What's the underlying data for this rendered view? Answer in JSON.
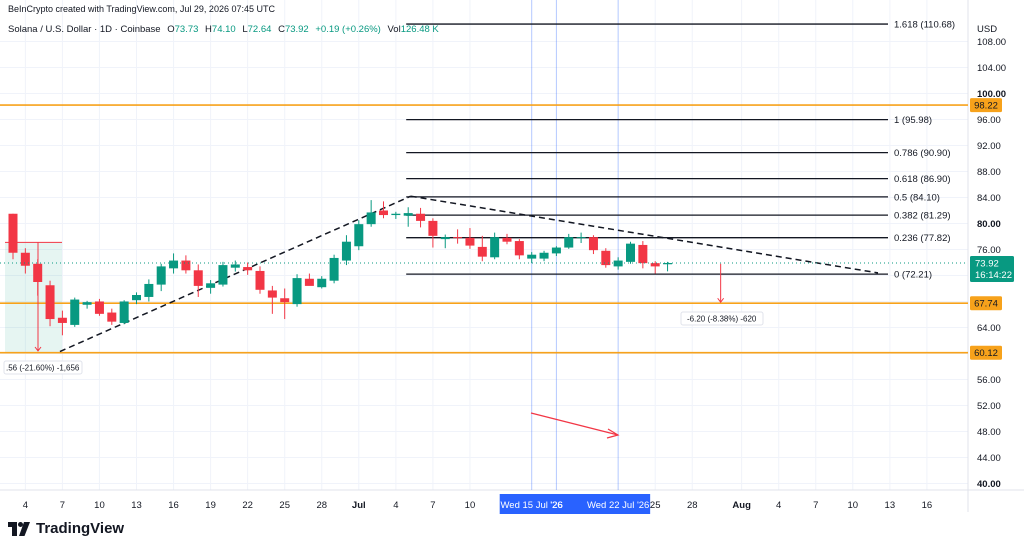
{
  "header": {
    "credit": "BeInCrypto created with TradingView.com, Jul 29, 2026 07:45 UTC"
  },
  "legend": {
    "symbol": "Solana / U.S. Dollar · 1D · Coinbase",
    "o_label": "O",
    "o_val": "73.73",
    "h_label": "H",
    "h_val": "74.10",
    "l_label": "L",
    "l_val": "72.64",
    "c_label": "C",
    "c_val": "73.92",
    "chg": "+0.19 (+0.26%)",
    "vol_label": "Vol",
    "vol_val": "126.48 K"
  },
  "currency": "USD",
  "logo_text": "TradingView",
  "colors": {
    "up": "#089981",
    "down": "#f23645",
    "support": "#f7a21b",
    "fib": "#131722",
    "selection": "#2962ff"
  },
  "chart_data": {
    "type": "candlestick",
    "price_axis": {
      "ticks": [
        "108.00",
        "104.00",
        "100.00",
        "96.00",
        "92.00",
        "88.00",
        "84.00",
        "80.00",
        "76.00",
        "72.00",
        "68.00",
        "64.00",
        "60.00",
        "56.00",
        "52.00",
        "48.00",
        "44.00",
        "40.00"
      ],
      "bold_ticks": [
        "100.00",
        "80.00",
        "40.00"
      ],
      "range": [
        39,
        111
      ]
    },
    "time_axis": {
      "labels": [
        {
          "text": "4",
          "i": 1
        },
        {
          "text": "7",
          "i": 4
        },
        {
          "text": "10",
          "i": 7
        },
        {
          "text": "13",
          "i": 10
        },
        {
          "text": "16",
          "i": 13
        },
        {
          "text": "19",
          "i": 16
        },
        {
          "text": "22",
          "i": 19
        },
        {
          "text": "25",
          "i": 22
        },
        {
          "text": "28",
          "i": 25
        },
        {
          "text": "Jul",
          "i": 28
        },
        {
          "text": "4",
          "i": 31
        },
        {
          "text": "7",
          "i": 34
        },
        {
          "text": "10",
          "i": 37
        },
        {
          "text": "25",
          "i": 52
        },
        {
          "text": "28",
          "i": 55
        },
        {
          "text": "Aug",
          "i": 59
        },
        {
          "text": "4",
          "i": 62
        },
        {
          "text": "7",
          "i": 65
        },
        {
          "text": "10",
          "i": 68
        },
        {
          "text": "13",
          "i": 71
        },
        {
          "text": "16",
          "i": 74
        }
      ],
      "highlights": [
        {
          "text": "Wed 15 Jul '26",
          "i": 42
        },
        {
          "text": "'26",
          "i": 44
        },
        {
          "text": "Wed 22 Jul '26",
          "i": 49
        }
      ]
    },
    "candles": [
      {
        "o": 81.5,
        "h": 81.5,
        "l": 74.5,
        "c": 75.5
      },
      {
        "o": 75.5,
        "h": 76.2,
        "l": 72.3,
        "c": 73.5
      },
      {
        "o": 73.8,
        "h": 74.5,
        "l": 68.9,
        "c": 71.0
      },
      {
        "o": 70.5,
        "h": 71.2,
        "l": 64.2,
        "c": 65.3
      },
      {
        "o": 65.5,
        "h": 66.6,
        "l": 62.8,
        "c": 64.7
      },
      {
        "o": 64.4,
        "h": 68.6,
        "l": 64.1,
        "c": 68.3
      },
      {
        "o": 67.5,
        "h": 68.1,
        "l": 66.9,
        "c": 67.9
      },
      {
        "o": 68.0,
        "h": 68.4,
        "l": 65.8,
        "c": 66.1
      },
      {
        "o": 66.3,
        "h": 66.9,
        "l": 64.4,
        "c": 64.9
      },
      {
        "o": 64.7,
        "h": 68.2,
        "l": 64.5,
        "c": 68.0
      },
      {
        "o": 68.2,
        "h": 69.4,
        "l": 67.6,
        "c": 69.0
      },
      {
        "o": 68.7,
        "h": 71.4,
        "l": 68.0,
        "c": 70.7
      },
      {
        "o": 70.6,
        "h": 73.8,
        "l": 69.6,
        "c": 73.4
      },
      {
        "o": 73.1,
        "h": 75.4,
        "l": 72.3,
        "c": 74.3
      },
      {
        "o": 74.3,
        "h": 75.1,
        "l": 72.3,
        "c": 72.8
      },
      {
        "o": 72.8,
        "h": 73.7,
        "l": 68.7,
        "c": 70.4
      },
      {
        "o": 70.1,
        "h": 71.3,
        "l": 69.2,
        "c": 70.8
      },
      {
        "o": 70.6,
        "h": 74.1,
        "l": 70.3,
        "c": 73.6
      },
      {
        "o": 73.2,
        "h": 74.3,
        "l": 72.6,
        "c": 73.7
      },
      {
        "o": 73.3,
        "h": 74.0,
        "l": 72.1,
        "c": 72.8
      },
      {
        "o": 72.7,
        "h": 73.4,
        "l": 69.2,
        "c": 69.8
      },
      {
        "o": 69.7,
        "h": 70.4,
        "l": 66.1,
        "c": 68.6
      },
      {
        "o": 68.5,
        "h": 70.0,
        "l": 65.3,
        "c": 67.9
      },
      {
        "o": 67.6,
        "h": 72.2,
        "l": 67.2,
        "c": 71.6
      },
      {
        "o": 71.5,
        "h": 72.3,
        "l": 70.6,
        "c": 70.4
      },
      {
        "o": 70.2,
        "h": 71.9,
        "l": 70.0,
        "c": 71.5
      },
      {
        "o": 71.2,
        "h": 75.2,
        "l": 70.8,
        "c": 74.7
      },
      {
        "o": 74.3,
        "h": 78.2,
        "l": 73.6,
        "c": 77.2
      },
      {
        "o": 76.5,
        "h": 80.5,
        "l": 75.9,
        "c": 79.9
      },
      {
        "o": 79.9,
        "h": 83.6,
        "l": 79.5,
        "c": 81.7
      },
      {
        "o": 82.0,
        "h": 83.4,
        "l": 80.8,
        "c": 81.3
      },
      {
        "o": 81.3,
        "h": 81.8,
        "l": 80.7,
        "c": 81.5
      },
      {
        "o": 81.2,
        "h": 82.5,
        "l": 79.5,
        "c": 81.6
      },
      {
        "o": 81.5,
        "h": 82.4,
        "l": 79.4,
        "c": 80.4
      },
      {
        "o": 80.4,
        "h": 80.8,
        "l": 76.3,
        "c": 78.1
      },
      {
        "o": 77.6,
        "h": 78.3,
        "l": 76.2,
        "c": 77.9
      },
      {
        "o": 77.9,
        "h": 79.1,
        "l": 76.9,
        "c": 77.8
      },
      {
        "o": 77.8,
        "h": 79.3,
        "l": 76.1,
        "c": 76.6
      },
      {
        "o": 76.4,
        "h": 78.1,
        "l": 74.2,
        "c": 74.9
      },
      {
        "o": 74.8,
        "h": 78.6,
        "l": 74.5,
        "c": 77.9
      },
      {
        "o": 77.8,
        "h": 78.4,
        "l": 76.8,
        "c": 77.2
      },
      {
        "o": 77.3,
        "h": 77.6,
        "l": 74.5,
        "c": 75.1
      },
      {
        "o": 74.6,
        "h": 75.6,
        "l": 73.9,
        "c": 75.2
      },
      {
        "o": 74.6,
        "h": 75.8,
        "l": 74.2,
        "c": 75.5
      },
      {
        "o": 75.4,
        "h": 76.5,
        "l": 75.0,
        "c": 76.3
      },
      {
        "o": 76.3,
        "h": 78.4,
        "l": 76.1,
        "c": 77.9
      },
      {
        "o": 77.9,
        "h": 78.6,
        "l": 77.0,
        "c": 77.9
      },
      {
        "o": 77.9,
        "h": 78.2,
        "l": 75.3,
        "c": 75.9
      },
      {
        "o": 75.8,
        "h": 76.2,
        "l": 73.2,
        "c": 73.6
      },
      {
        "o": 73.4,
        "h": 74.8,
        "l": 72.9,
        "c": 74.3
      },
      {
        "o": 74.1,
        "h": 77.2,
        "l": 73.8,
        "c": 76.9
      },
      {
        "o": 76.7,
        "h": 77.3,
        "l": 73.1,
        "c": 73.9
      },
      {
        "o": 73.9,
        "h": 74.2,
        "l": 72.3,
        "c": 73.4
      },
      {
        "o": 73.73,
        "h": 74.1,
        "l": 72.64,
        "c": 73.92
      }
    ],
    "horizontal_levels": [
      {
        "value": 98.22,
        "label": "98.22"
      },
      {
        "value": 67.74,
        "label": "67.74"
      },
      {
        "value": 60.12,
        "label": "60.12"
      }
    ],
    "fibonacci": [
      {
        "label": "1.618 (110.68)",
        "value": 110.68
      },
      {
        "label": "1 (95.98)",
        "value": 95.98
      },
      {
        "label": "0.786 (90.90)",
        "value": 90.9
      },
      {
        "label": "0.618 (86.90)",
        "value": 86.9
      },
      {
        "label": "0.5 (84.10)",
        "value": 84.1
      },
      {
        "label": "0.382 (81.29)",
        "value": 81.29
      },
      {
        "label": "0.236 (77.82)",
        "value": 77.82
      },
      {
        "label": "0 (72.21)",
        "value": 72.21
      }
    ],
    "price_tag": {
      "value": 73.92,
      "label": "73.92",
      "countdown": "16:14:22"
    },
    "measure_main": {
      "label": "-6.20 (-8.38%) -620"
    },
    "measure_left": {
      "label": ".56 (-21.60%) -1,656"
    }
  }
}
